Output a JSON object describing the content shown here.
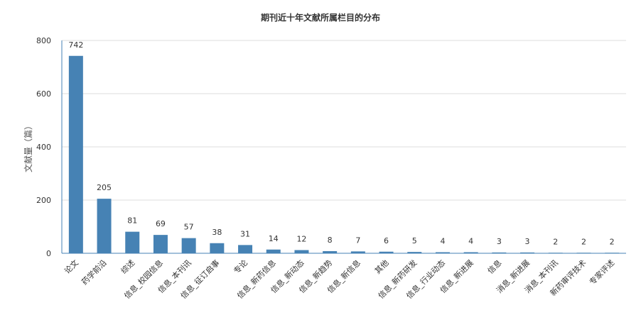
{
  "chart_data": {
    "type": "bar",
    "title": "期刊近十年文献所属栏目的分布",
    "xlabel": "",
    "ylabel": "文献量（篇）",
    "ylim": [
      0,
      800
    ],
    "yticks": [
      0,
      200,
      400,
      600,
      800
    ],
    "grid": true,
    "legend": "none",
    "bar_color": "#4682b4",
    "categories": [
      "论文",
      "药学前沿",
      "综述",
      "信息_校园信息",
      "信息_本刊讯",
      "信息_征订启事",
      "专论",
      "信息_新药信息",
      "信息_新动态",
      "信息_新趋势",
      "信息_新信息",
      "其他",
      "信息_新药研发",
      "信息_行业动态",
      "信息_新进展",
      "信息",
      "消息_新进展",
      "消息_本刊讯",
      "新药审评技术",
      "专家评述"
    ],
    "values": [
      742,
      205,
      81,
      69,
      57,
      38,
      31,
      14,
      12,
      8,
      7,
      6,
      5,
      4,
      4,
      3,
      3,
      2,
      2,
      2
    ]
  }
}
